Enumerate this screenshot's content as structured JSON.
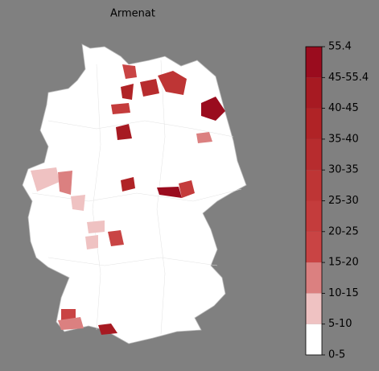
{
  "title": "Armenat",
  "legend": {
    "labels": [
      "0-5",
      "5-10",
      "10-15",
      "15-20",
      "20-25",
      "25-30",
      "30-35",
      "35-40",
      "40-45",
      "45-55.4",
      "55.4"
    ],
    "colors": [
      "#ffffff",
      "#efc2c2",
      "#db8080",
      "#c94444",
      "#c43c3c",
      "#be3535",
      "#b72c2e",
      "#b02326",
      "#a71a22",
      "#9a0c1e"
    ]
  }
}
